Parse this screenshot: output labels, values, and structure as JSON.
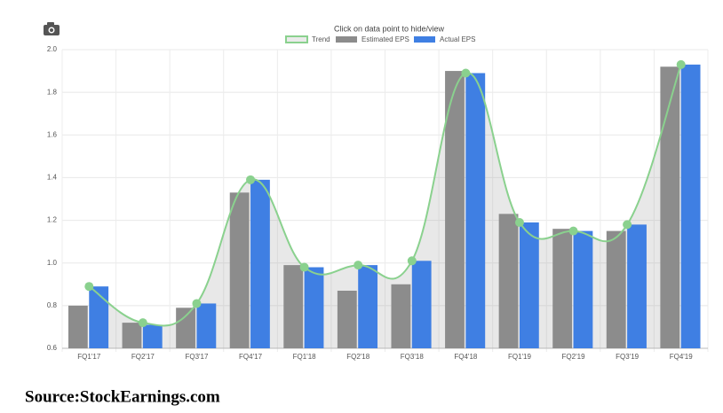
{
  "chart_data": {
    "type": "bar",
    "title": "Click on data point to hide/view",
    "source": "Source:StockEarnings.com",
    "categories": [
      "FQ1'17",
      "FQ2'17",
      "FQ3'17",
      "FQ4'17",
      "FQ1'18",
      "FQ2'18",
      "FQ3'18",
      "FQ4'18",
      "FQ1'19",
      "FQ2'19",
      "FQ3'19",
      "FQ4'19"
    ],
    "series": [
      {
        "name": "Trend",
        "type": "line",
        "color": "#8ad18e",
        "values": [
          0.89,
          0.72,
          0.81,
          1.39,
          0.98,
          0.99,
          1.01,
          1.89,
          1.19,
          1.15,
          1.18,
          1.93
        ]
      },
      {
        "name": "Estimated EPS",
        "type": "bar",
        "color": "#8c8c8c",
        "values": [
          0.8,
          0.72,
          0.79,
          1.33,
          0.99,
          0.87,
          0.9,
          1.9,
          1.23,
          1.16,
          1.15,
          1.92
        ]
      },
      {
        "name": "Actual EPS",
        "type": "bar",
        "color": "#3f7fe3",
        "values": [
          0.89,
          0.71,
          0.81,
          1.39,
          0.98,
          0.99,
          1.01,
          1.89,
          1.19,
          1.15,
          1.18,
          1.93
        ]
      }
    ],
    "ylim": [
      0.6,
      2.0
    ],
    "yticks": [
      0.6,
      0.8,
      {
        "value": 1.0,
        "label": "1.0"
      },
      1.2,
      1.4,
      1.6,
      1.8,
      {
        "value": 2.0,
        "label": "2.0"
      }
    ],
    "grid": true
  }
}
